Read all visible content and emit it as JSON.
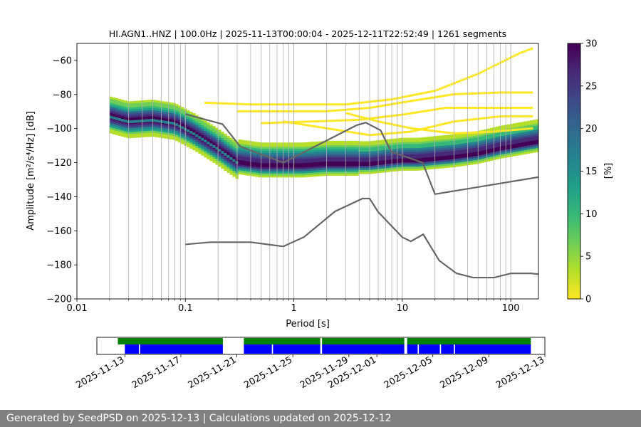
{
  "footer": {
    "text": "Generated by SeedPSD on 2025-12-13 | Calculations updated on 2025-12-12"
  },
  "colors": {
    "viridis": [
      "#fde725",
      "#b5de2b",
      "#6ece58",
      "#35b779",
      "#1f9e89",
      "#26828e",
      "#31688e",
      "#3e4989",
      "#482878",
      "#440154"
    ],
    "noise_model": "#666666",
    "coverage_green": "#008000",
    "coverage_blue": "#0000ff",
    "grid": "#b0b0b0"
  },
  "chart_data": [
    {
      "type": "heatmap",
      "title": "HI.AGN1..HNZ | 100.0Hz | 2025-11-13T00:00:04 - 2025-12-11T22:52:49 | 1261 segments",
      "xlabel": "Period [s]",
      "ylabel": "Amplitude [m²/s⁴/Hz] [dB]",
      "xscale": "log",
      "xlim": [
        0.01,
        180
      ],
      "ylim": [
        -200,
        -50
      ],
      "xticks": [
        0.01,
        0.1,
        1,
        10,
        100
      ],
      "xtick_labels": [
        "0.01",
        "0.1",
        "1",
        "10",
        "100"
      ],
      "yticks": [
        -200,
        -180,
        -160,
        -140,
        -120,
        -100,
        -80,
        -60
      ],
      "ytick_labels": [
        "−200",
        "−180",
        "−160",
        "−140",
        "−120",
        "−100",
        "−80",
        "−60"
      ],
      "grid": true,
      "colorbar": {
        "label": "[%]",
        "range": [
          0,
          30
        ],
        "ticks": [
          0,
          5,
          10,
          15,
          20,
          25,
          30
        ],
        "tick_labels": [
          "0",
          "5",
          "10",
          "15",
          "20",
          "25",
          "30"
        ]
      },
      "psd_mode": {
        "name": "",
        "period": [
          0.02,
          0.03,
          0.05,
          0.08,
          0.12,
          0.2,
          0.3,
          0.5,
          0.8,
          1.2,
          2,
          3,
          4,
          5,
          7,
          10,
          14,
          20,
          30,
          50,
          80,
          120,
          180
        ],
        "db": [
          -93,
          -96,
          -95,
          -97,
          -103,
          -112,
          -120,
          -122,
          -122,
          -122,
          -121,
          -121,
          -121,
          -121,
          -120,
          -119,
          -119,
          -118,
          -117,
          -115,
          -112,
          -110,
          -108
        ]
      },
      "spurious_lines": [
        {
          "period": [
            0.15,
            0.4,
            1,
            3,
            8,
            20,
            50,
            120,
            160
          ],
          "db": [
            -85,
            -86,
            -86,
            -86,
            -83,
            -78,
            -68,
            -56,
            -53
          ]
        },
        {
          "period": [
            0.3,
            0.8,
            2,
            5,
            12,
            30,
            80,
            160
          ],
          "db": [
            -90,
            -90,
            -90,
            -88,
            -84,
            -80,
            -79,
            -79
          ]
        },
        {
          "period": [
            0.5,
            1.5,
            4,
            10,
            25,
            60,
            160
          ],
          "db": [
            -97,
            -96,
            -95,
            -92,
            -88,
            -88,
            -88
          ]
        },
        {
          "period": [
            0.8,
            2,
            5,
            12,
            30,
            80,
            160
          ],
          "db": [
            -96,
            -100,
            -104,
            -102,
            -96,
            -93,
            -93
          ]
        },
        {
          "period": [
            3,
            6,
            12,
            30,
            70,
            160
          ],
          "db": [
            -91,
            -96,
            -100,
            -103,
            -102,
            -100
          ]
        }
      ],
      "noise_models": [
        {
          "name": "",
          "period": [
            0.1,
            0.22,
            0.32,
            0.8,
            3.8,
            4.6,
            6.3,
            7.9,
            15.4,
            20,
            180
          ],
          "db": [
            -91.5,
            -97.4,
            -110.5,
            -120,
            -98,
            -96.5,
            -101,
            -113.5,
            -120,
            -138.5,
            -128.5
          ]
        },
        {
          "name": "",
          "period": [
            0.1,
            0.17,
            0.4,
            0.8,
            1.24,
            2.4,
            4.3,
            5,
            6,
            10,
            12,
            15.6,
            21.9,
            31.6,
            45,
            70,
            101,
            154,
            180
          ],
          "db": [
            -168,
            -166.7,
            -166.7,
            -169.2,
            -163.7,
            -148.6,
            -141.1,
            -141.1,
            -149,
            -163.8,
            -166.2,
            -162.1,
            -177.5,
            -185,
            -187.5,
            -187.5,
            -185,
            -185,
            -185.5
          ]
        }
      ]
    },
    {
      "type": "bar",
      "xlim": [
        "2025-11-11",
        "2025-12-13"
      ],
      "xtick_labels": [
        "2025-11-13",
        "2025-11-17",
        "2025-11-21",
        "2025-11-25",
        "2025-11-29",
        "2025-12-01",
        "2025-12-05",
        "2025-12-09",
        "2025-12-13"
      ],
      "xticks": [
        "2025-11-13",
        "2025-11-17",
        "2025-11-21",
        "2025-11-25",
        "2025-11-29",
        "2025-12-01",
        "2025-12-05",
        "2025-12-09",
        "2025-12-13"
      ],
      "series": [
        {
          "name": "",
          "kind": "data",
          "intervals": [
            [
              "2025-11-12T12:00",
              "2025-11-20T00:00"
            ],
            [
              "2025-11-21T12:00",
              "2025-11-26T23:00"
            ],
            [
              "2025-11-27T02:00",
              "2025-12-02T23:00"
            ],
            [
              "2025-12-03T04:00",
              "2025-12-12T00:00"
            ]
          ]
        },
        {
          "name": "",
          "kind": "psd",
          "intervals": [
            [
              "2025-11-13T00:00",
              "2025-11-14T00:00"
            ],
            [
              "2025-11-14T02:00",
              "2025-11-20T00:00"
            ],
            [
              "2025-11-21T12:00",
              "2025-11-23T12:00"
            ],
            [
              "2025-11-23T14:00",
              "2025-11-26T23:00"
            ],
            [
              "2025-11-27T02:00",
              "2025-12-02T23:00"
            ],
            [
              "2025-12-03T04:00",
              "2025-12-03T22:00"
            ],
            [
              "2025-12-04T00:00",
              "2025-12-05T12:00"
            ],
            [
              "2025-12-05T14:00",
              "2025-12-06T12:00"
            ],
            [
              "2025-12-06T14:00",
              "2025-12-12T00:00"
            ]
          ]
        }
      ]
    }
  ]
}
